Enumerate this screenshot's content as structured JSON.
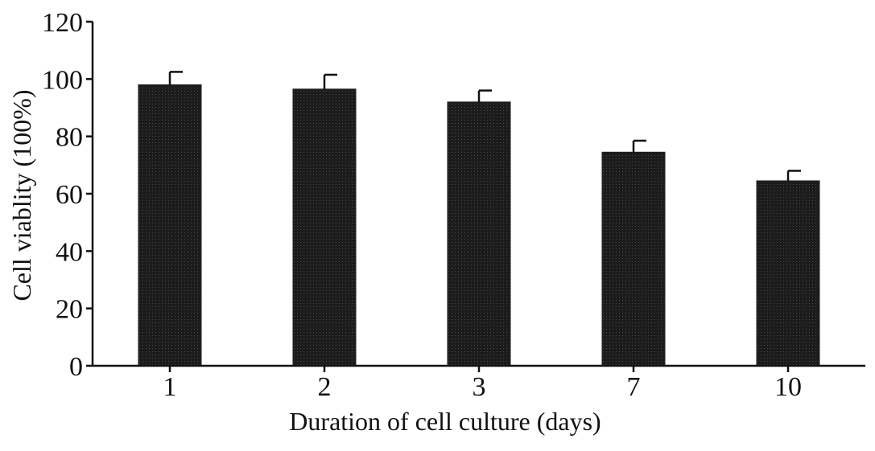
{
  "chart_data": {
    "type": "bar",
    "categories": [
      "1",
      "2",
      "3",
      "7",
      "10"
    ],
    "values": [
      98,
      96.5,
      92,
      74.5,
      64.5
    ],
    "error": [
      4.5,
      5,
      4,
      4,
      3.5
    ],
    "title": "",
    "xlabel": "Duration of cell culture (days)",
    "ylabel": "Cell viablity (100%)",
    "ylim": [
      0,
      120
    ],
    "yticks": [
      "0",
      "20",
      "40",
      "60",
      "80",
      "100",
      "120"
    ],
    "grid": false,
    "bar_color": "#1c1c1c"
  }
}
